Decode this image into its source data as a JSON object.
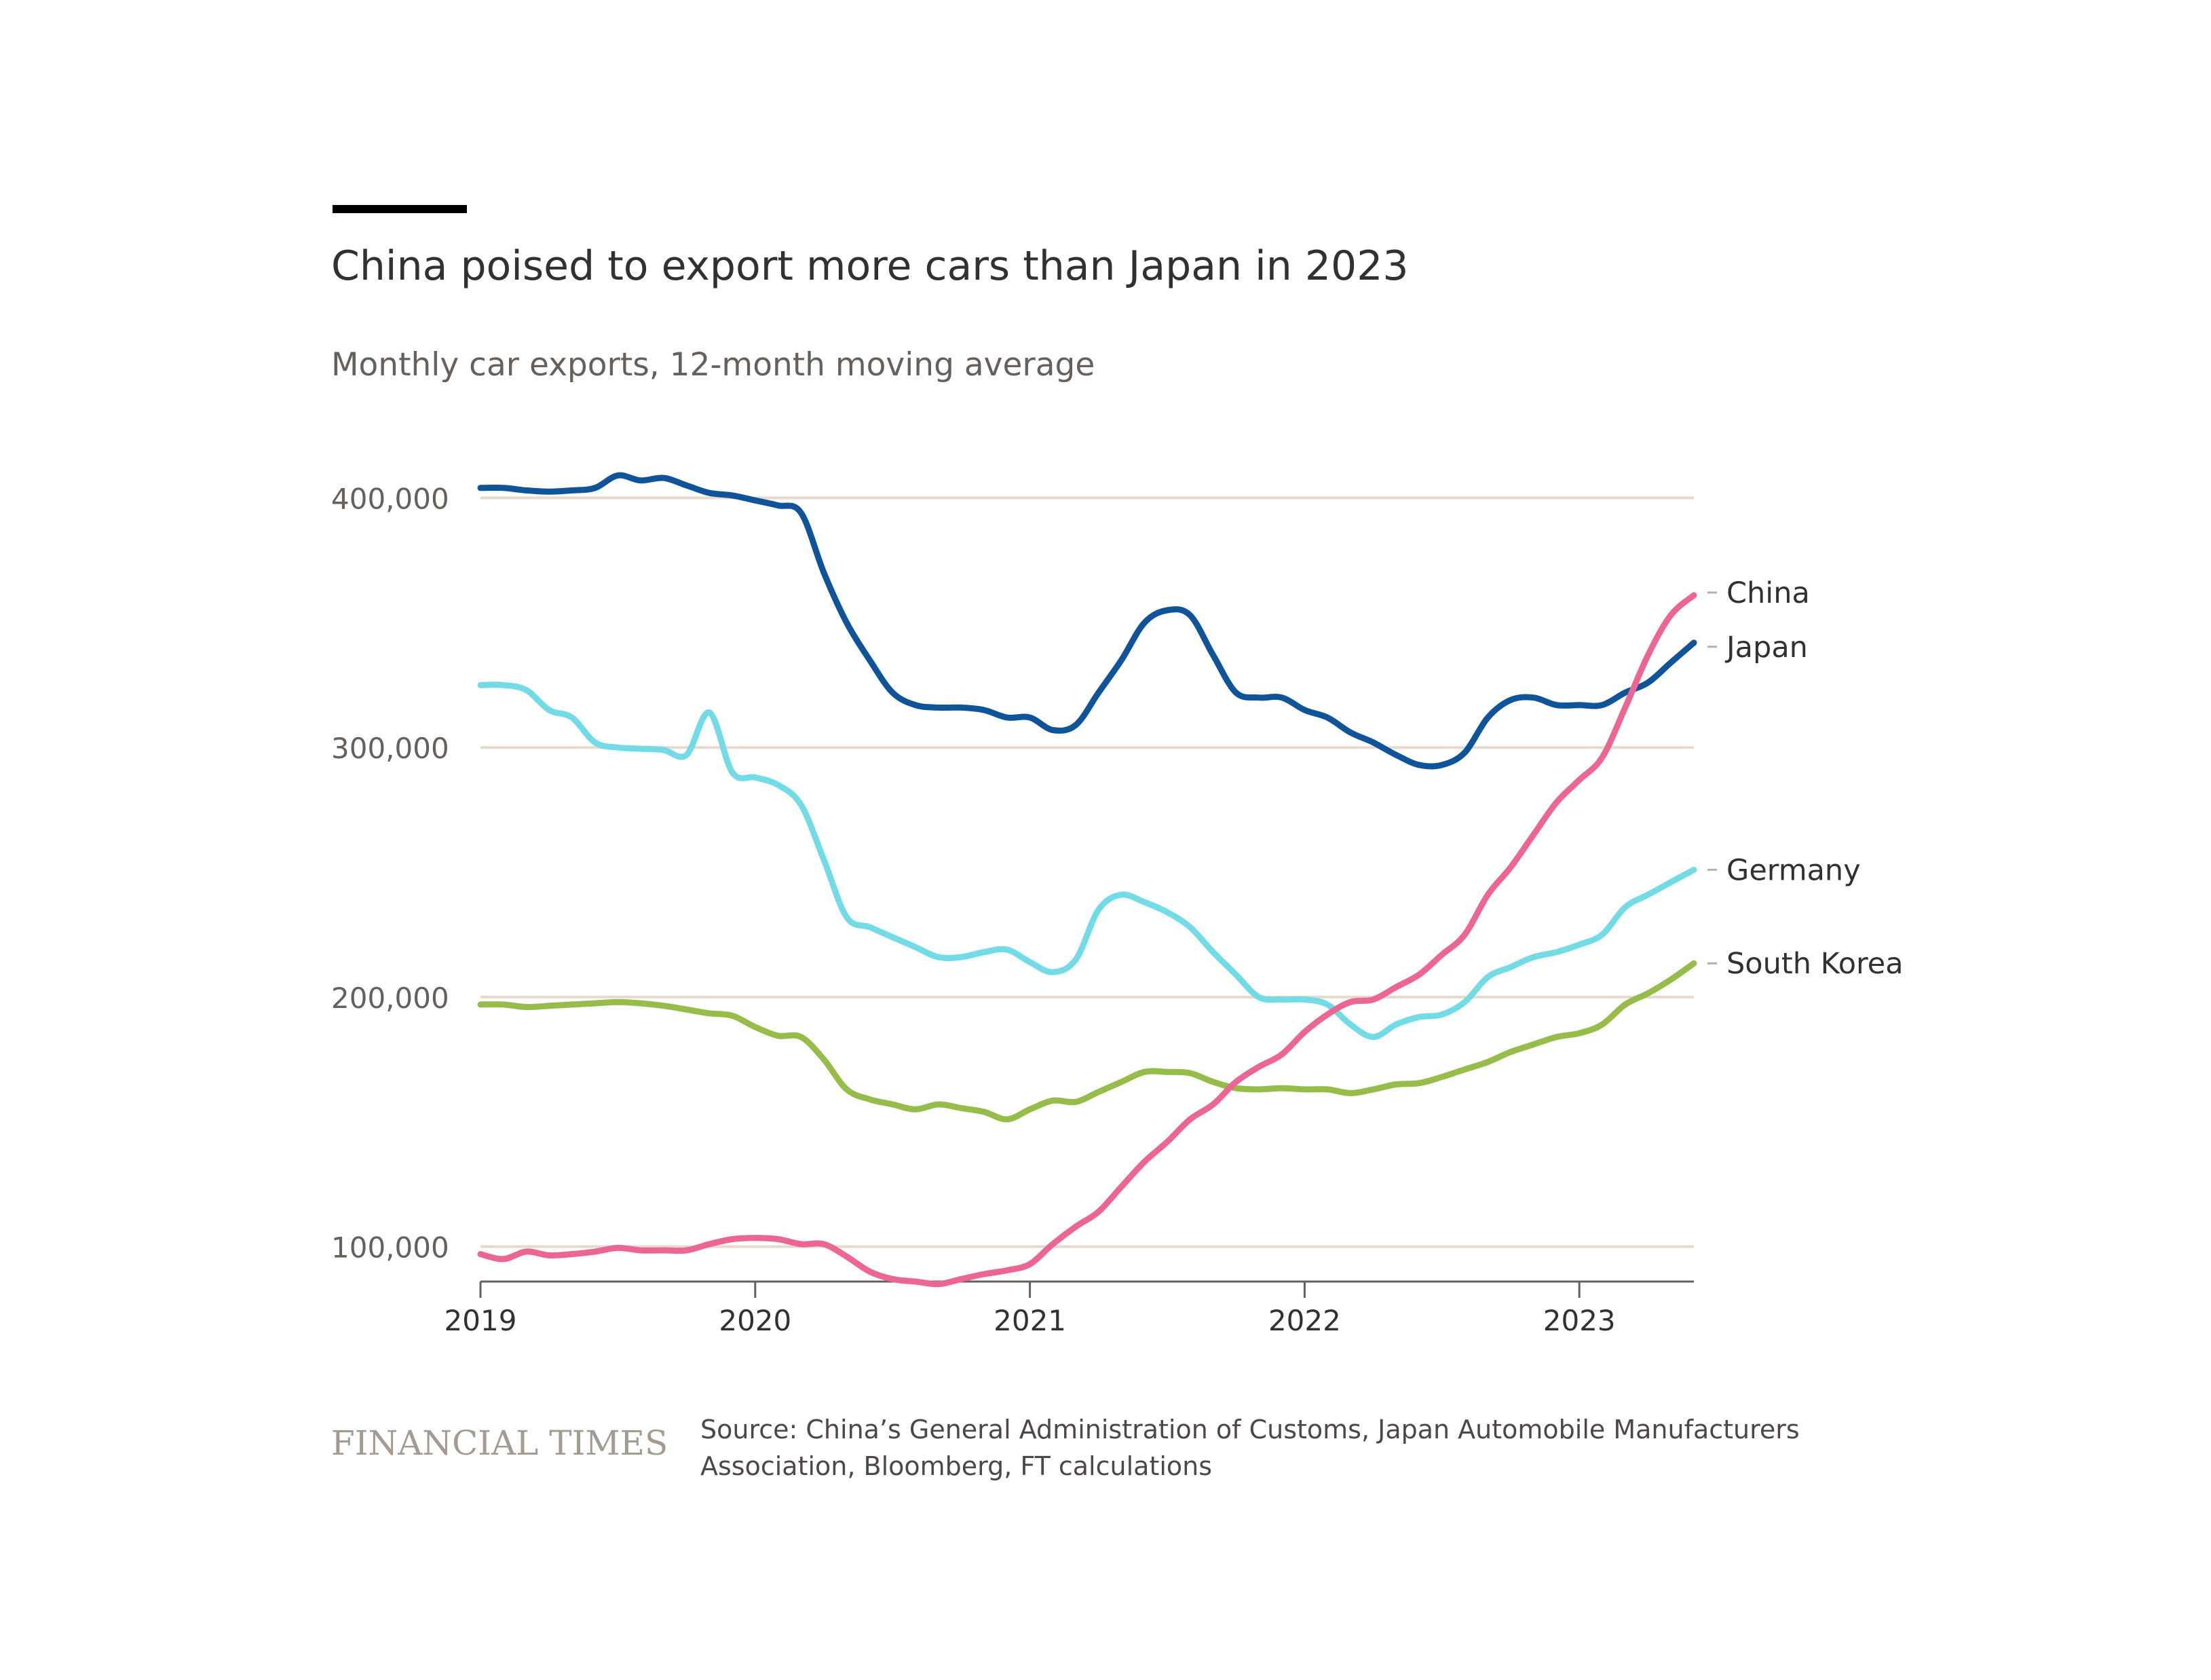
{
  "header": {
    "title": "China poised to export more cars than Japan in 2023",
    "subtitle": "Monthly car exports, 12-month moving average"
  },
  "footer": {
    "brand": "FINANCIAL TIMES",
    "source": "Source: China’s General Administration of Customs, Japan Automobile Manufacturers Association, Bloomberg, FT calculations"
  },
  "colors": {
    "China": "#ec6694",
    "Japan": "#0f5499",
    "Germany": "#73dbe6",
    "South Korea": "#96bc49",
    "gridline": "#e6d9ce",
    "axis": "#66605c",
    "text": "#33302e"
  },
  "chart_data": {
    "type": "line",
    "title": "China poised to export more cars than Japan in 2023",
    "subtitle": "Monthly car exports, 12-month moving average",
    "xlabel": "",
    "ylabel": "",
    "x_ticks": [
      "2019",
      "2020",
      "2021",
      "2022",
      "2023"
    ],
    "x_tick_values": [
      2019,
      2020,
      2021,
      2022,
      2023
    ],
    "y_ticks": [
      100000,
      200000,
      300000,
      400000
    ],
    "y_tick_labels": [
      "100,000",
      "200,000",
      "300,000",
      "400,000"
    ],
    "xlim": [
      2019,
      2023.417
    ],
    "ylim": [
      86000,
      420000
    ],
    "grid": true,
    "legend": "direct labels at line ends, right",
    "x": [
      2019,
      2019.083,
      2019.167,
      2019.25,
      2019.333,
      2019.417,
      2019.5,
      2019.583,
      2019.667,
      2019.75,
      2019.833,
      2019.917,
      2020,
      2020.083,
      2020.167,
      2020.25,
      2020.333,
      2020.417,
      2020.5,
      2020.583,
      2020.667,
      2020.75,
      2020.833,
      2020.917,
      2021,
      2021.083,
      2021.167,
      2021.25,
      2021.333,
      2021.417,
      2021.5,
      2021.583,
      2021.667,
      2021.75,
      2021.833,
      2021.917,
      2022,
      2022.083,
      2022.167,
      2022.25,
      2022.333,
      2022.417,
      2022.5,
      2022.583,
      2022.667,
      2022.75,
      2022.833,
      2022.917,
      2023,
      2023.083,
      2023.167,
      2023.25,
      2023.333,
      2023.417
    ],
    "series": [
      {
        "name": "Japan",
        "values": [
          404000,
          404000,
          403000,
          402500,
          403000,
          404000,
          409000,
          407000,
          408000,
          405000,
          402000,
          401000,
          399000,
          397000,
          394000,
          370000,
          350000,
          335000,
          322000,
          317000,
          316000,
          316000,
          315000,
          312000,
          312000,
          307000,
          309000,
          322000,
          335000,
          350000,
          355000,
          353000,
          337000,
          322000,
          320000,
          320000,
          315000,
          312000,
          306000,
          302000,
          297000,
          293000,
          293000,
          298000,
          312000,
          319000,
          320000,
          317000,
          317000,
          317000,
          322000,
          326000,
          334000,
          342000
        ]
      },
      {
        "name": "Germany",
        "values": [
          325000,
          325000,
          323000,
          315000,
          312000,
          302000,
          300000,
          299500,
          299000,
          297000,
          314000,
          290000,
          288000,
          285000,
          277000,
          255000,
          232000,
          228000,
          224000,
          220000,
          216000,
          216000,
          218000,
          219000,
          214000,
          210000,
          215000,
          235000,
          241000,
          238000,
          234000,
          228000,
          218000,
          209000,
          200000,
          199000,
          199000,
          197000,
          189000,
          184000,
          189000,
          192000,
          193000,
          198000,
          208000,
          212000,
          216000,
          218000,
          221000,
          225000,
          236000,
          241000,
          246000,
          251000
        ]
      },
      {
        "name": "South Korea",
        "values": [
          197000,
          197000,
          196000,
          196500,
          197000,
          197500,
          198000,
          197500,
          196500,
          195000,
          193500,
          192500,
          188000,
          184500,
          184000,
          175000,
          163000,
          159000,
          157000,
          155000,
          157000,
          155500,
          154000,
          151000,
          155000,
          158500,
          158000,
          162000,
          166000,
          170000,
          170000,
          169500,
          166000,
          163500,
          163000,
          163500,
          163000,
          163000,
          161500,
          163000,
          165000,
          165500,
          168000,
          171000,
          174000,
          178000,
          181000,
          184000,
          185500,
          189000,
          197000,
          201500,
          207000,
          213500
        ]
      },
      {
        "name": "China",
        "values": [
          97000,
          95000,
          98000,
          96500,
          97000,
          98000,
          99500,
          98500,
          98500,
          98500,
          101000,
          103000,
          103500,
          103000,
          101000,
          101000,
          96000,
          90000,
          87000,
          86000,
          85000,
          87000,
          89000,
          90500,
          93000,
          101000,
          108000,
          114000,
          124000,
          134000,
          142000,
          151000,
          157000,
          166000,
          172000,
          177000,
          186000,
          193000,
          198000,
          199000,
          204000,
          209000,
          217000,
          225000,
          241000,
          252000,
          265000,
          278000,
          287000,
          296000,
          316000,
          337000,
          353000,
          361000
        ]
      }
    ]
  }
}
